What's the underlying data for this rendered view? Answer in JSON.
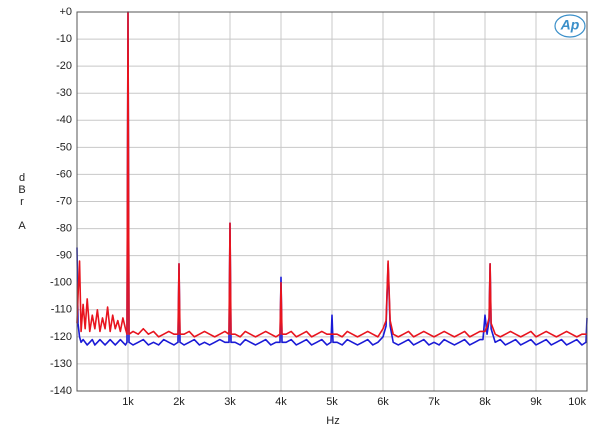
{
  "chart_data": {
    "type": "line",
    "logo": "Ap",
    "xlabel": "Hz",
    "ylabel": "dBr A",
    "xlim": [
      0,
      10000
    ],
    "ylim": [
      -140,
      0
    ],
    "grid": true,
    "xticks": [
      {
        "value": 1000,
        "label": "1k"
      },
      {
        "value": 2000,
        "label": "2k"
      },
      {
        "value": 3000,
        "label": "3k"
      },
      {
        "value": 4000,
        "label": "4k"
      },
      {
        "value": 5000,
        "label": "5k"
      },
      {
        "value": 6000,
        "label": "6k"
      },
      {
        "value": 7000,
        "label": "7k"
      },
      {
        "value": 8000,
        "label": "8k"
      },
      {
        "value": 9000,
        "label": "9k"
      },
      {
        "value": 10000,
        "label": "10k"
      }
    ],
    "yticks": [
      {
        "value": 0,
        "label": "+0"
      },
      -10,
      -20,
      -30,
      -40,
      -50,
      -60,
      -70,
      -80,
      -90,
      -100,
      -110,
      -120,
      -130,
      -140
    ],
    "x": [
      0,
      20,
      50,
      80,
      120,
      160,
      200,
      250,
      300,
      350,
      400,
      450,
      500,
      550,
      600,
      650,
      700,
      750,
      800,
      850,
      900,
      950,
      980,
      1000,
      1020,
      1100,
      1200,
      1300,
      1400,
      1500,
      1600,
      1700,
      1800,
      1900,
      1980,
      2000,
      2020,
      2100,
      2200,
      2300,
      2400,
      2500,
      2600,
      2700,
      2800,
      2900,
      2980,
      3000,
      3020,
      3100,
      3200,
      3300,
      3400,
      3500,
      3600,
      3700,
      3800,
      3900,
      3980,
      4000,
      4020,
      4100,
      4200,
      4300,
      4400,
      4500,
      4600,
      4700,
      4800,
      4900,
      4980,
      5000,
      5020,
      5100,
      5200,
      5300,
      5400,
      5500,
      5600,
      5700,
      5800,
      5900,
      6000,
      6060,
      6100,
      6140,
      6200,
      6300,
      6400,
      6500,
      6600,
      6700,
      6800,
      6900,
      7000,
      7100,
      7200,
      7300,
      7400,
      7500,
      7600,
      7700,
      7800,
      7900,
      7960,
      8000,
      8040,
      8080,
      8100,
      8120,
      8200,
      8300,
      8400,
      8500,
      8600,
      8700,
      8800,
      8900,
      9000,
      9100,
      9200,
      9300,
      9400,
      9500,
      9600,
      9700,
      9800,
      9900,
      9980,
      10000
    ],
    "series": [
      {
        "color": "#1a1ad6",
        "values": [
          -87,
          -115,
          -120,
          -122,
          -121,
          -122,
          -123,
          -122,
          -121,
          -123,
          -122,
          -121,
          -122,
          -123,
          -122,
          -121,
          -122,
          -123,
          -122,
          -121,
          -122,
          -123,
          -122,
          0,
          -122,
          -123,
          -122,
          -121,
          -123,
          -122,
          -123,
          -121,
          -122,
          -123,
          -122,
          -93,
          -122,
          -123,
          -122,
          -121,
          -123,
          -122,
          -123,
          -122,
          -121,
          -122,
          -122,
          -78,
          -122,
          -122,
          -123,
          -121,
          -122,
          -123,
          -122,
          -121,
          -123,
          -122,
          -122,
          -98,
          -122,
          -122,
          -121,
          -123,
          -122,
          -121,
          -123,
          -122,
          -121,
          -123,
          -122,
          -112,
          -122,
          -122,
          -123,
          -121,
          -122,
          -123,
          -122,
          -121,
          -123,
          -122,
          -120,
          -116,
          -93,
          -116,
          -122,
          -123,
          -122,
          -121,
          -123,
          -122,
          -121,
          -123,
          -122,
          -123,
          -121,
          -122,
          -123,
          -122,
          -121,
          -123,
          -122,
          -121,
          -121,
          -112,
          -119,
          -114,
          -93,
          -117,
          -122,
          -121,
          -123,
          -122,
          -121,
          -123,
          -122,
          -121,
          -123,
          -122,
          -121,
          -123,
          -122,
          -121,
          -123,
          -122,
          -121,
          -123,
          -122,
          -113
        ]
      },
      {
        "color": "#e8141e",
        "values": [
          -115,
          -105,
          -92,
          -118,
          -108,
          -117,
          -106,
          -118,
          -112,
          -117,
          -110,
          -118,
          -113,
          -117,
          -109,
          -118,
          -112,
          -117,
          -114,
          -118,
          -113,
          -117,
          -119,
          0,
          -119,
          -118,
          -119,
          -117,
          -119,
          -118,
          -120,
          -119,
          -118,
          -119,
          -119,
          -93,
          -119,
          -119,
          -118,
          -120,
          -119,
          -118,
          -119,
          -120,
          -119,
          -118,
          -119,
          -78,
          -119,
          -119,
          -120,
          -118,
          -119,
          -120,
          -119,
          -118,
          -119,
          -120,
          -119,
          -100,
          -119,
          -119,
          -118,
          -120,
          -119,
          -118,
          -120,
          -119,
          -118,
          -119,
          -119,
          -119,
          -119,
          -119,
          -120,
          -118,
          -119,
          -120,
          -119,
          -118,
          -119,
          -120,
          -117,
          -114,
          -92,
          -114,
          -119,
          -120,
          -119,
          -118,
          -120,
          -119,
          -118,
          -119,
          -120,
          -119,
          -118,
          -119,
          -120,
          -119,
          -118,
          -120,
          -119,
          -118,
          -118,
          -118,
          -116,
          -113,
          -93,
          -115,
          -119,
          -120,
          -119,
          -118,
          -119,
          -120,
          -119,
          -118,
          -120,
          -119,
          -118,
          -119,
          -120,
          -119,
          -118,
          -119,
          -120,
          -119,
          -119,
          -119
        ]
      }
    ]
  }
}
